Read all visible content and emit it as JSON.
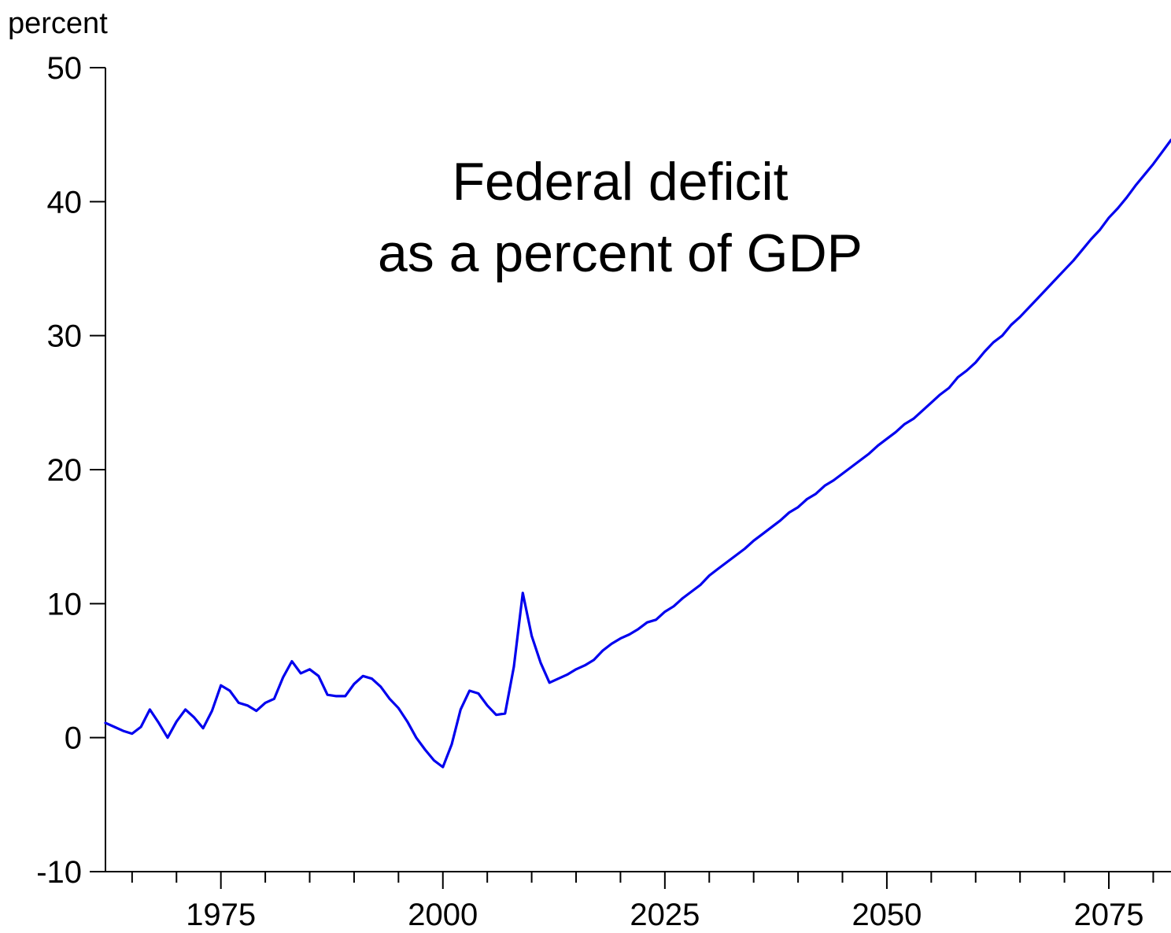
{
  "chart_data": {
    "type": "line",
    "title_lines": [
      "Federal deficit",
      "as a percent of GDP"
    ],
    "ylabel": "percent",
    "xlabel": "",
    "ylim": [
      -10,
      50
    ],
    "xlim": [
      1962,
      2082
    ],
    "yticks": [
      -10,
      0,
      10,
      20,
      30,
      40,
      50
    ],
    "xticks_labeled": [
      1975,
      2000,
      2025,
      2050,
      2075
    ],
    "xtick_step": 5,
    "grid": false,
    "line_color": "#0000ee",
    "series": [
      {
        "x": [
          1962,
          1963,
          1964,
          1965,
          1966,
          1967,
          1968,
          1969,
          1970,
          1971,
          1972,
          1973,
          1974,
          1975,
          1976,
          1977,
          1978,
          1979,
          1980,
          1981,
          1982,
          1983,
          1984,
          1985,
          1986,
          1987,
          1988,
          1989,
          1990,
          1991,
          1992,
          1993,
          1994,
          1995,
          1996,
          1997,
          1998,
          1999,
          2000,
          2001,
          2002,
          2003,
          2004,
          2005,
          2006,
          2007,
          2008,
          2009,
          2010,
          2011,
          2012,
          2013,
          2014,
          2015,
          2016,
          2017,
          2018,
          2019,
          2020,
          2021,
          2022,
          2023,
          2024,
          2025,
          2026,
          2027,
          2028,
          2029,
          2030,
          2031,
          2032,
          2033,
          2034,
          2035,
          2036,
          2037,
          2038,
          2039,
          2040,
          2041,
          2042,
          2043,
          2044,
          2045,
          2046,
          2047,
          2048,
          2049,
          2050,
          2051,
          2052,
          2053,
          2054,
          2055,
          2056,
          2057,
          2058,
          2059,
          2060,
          2061,
          2062,
          2063,
          2064,
          2065,
          2066,
          2067,
          2068,
          2069,
          2070,
          2071,
          2072,
          2073,
          2074,
          2075,
          2076,
          2077,
          2078,
          2079,
          2080,
          2081,
          2082
        ],
        "y": [
          1.1,
          0.8,
          0.5,
          0.3,
          0.8,
          2.1,
          1.1,
          0.0,
          1.2,
          2.1,
          1.5,
          0.7,
          2.0,
          3.9,
          3.5,
          2.6,
          2.4,
          2.0,
          2.6,
          2.9,
          4.5,
          5.7,
          4.8,
          5.1,
          4.6,
          3.2,
          3.1,
          3.1,
          4.0,
          4.6,
          4.4,
          3.8,
          2.9,
          2.2,
          1.2,
          0.0,
          -0.9,
          -1.7,
          -2.2,
          -0.5,
          2.1,
          3.5,
          3.3,
          2.4,
          1.7,
          1.8,
          5.3,
          10.8,
          7.6,
          5.6,
          4.1,
          4.4,
          4.7,
          5.1,
          5.4,
          5.8,
          6.5,
          7.0,
          7.4,
          7.7,
          8.1,
          8.6,
          8.8,
          9.4,
          9.8,
          10.4,
          10.9,
          11.4,
          12.1,
          12.6,
          13.1,
          13.6,
          14.1,
          14.7,
          15.2,
          15.7,
          16.2,
          16.8,
          17.2,
          17.8,
          18.2,
          18.8,
          19.2,
          19.7,
          20.2,
          20.7,
          21.2,
          21.8,
          22.3,
          22.8,
          23.4,
          23.8,
          24.4,
          25.0,
          25.6,
          26.1,
          26.9,
          27.4,
          28.0,
          28.8,
          29.5,
          30.0,
          30.8,
          31.4,
          32.1,
          32.8,
          33.5,
          34.2,
          34.9,
          35.6,
          36.4,
          37.2,
          37.9,
          38.8,
          39.5,
          40.3,
          41.2,
          42.0,
          42.8,
          43.7,
          44.6
        ]
      }
    ]
  }
}
